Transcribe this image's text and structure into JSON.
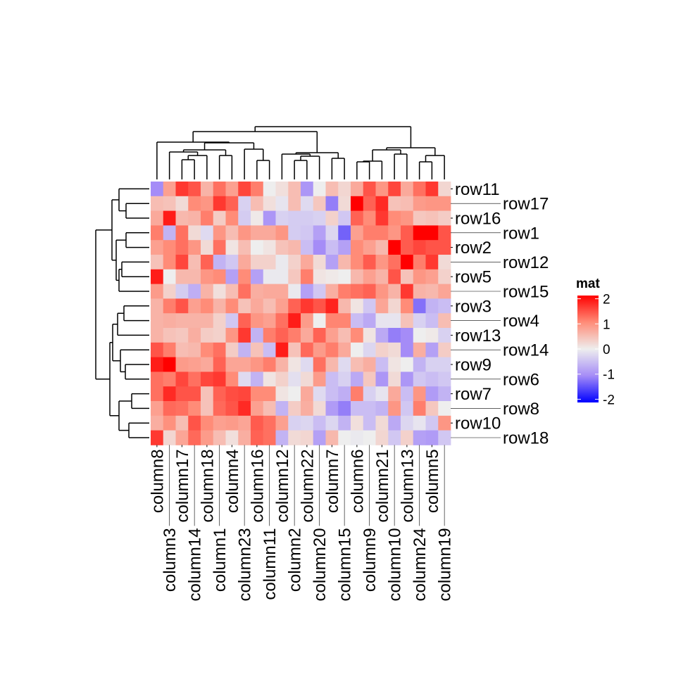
{
  "chart_data": {
    "type": "heatmap",
    "title": "",
    "legend": {
      "title": "mat",
      "ticks": [
        2,
        1,
        0,
        -1,
        -2
      ],
      "placement": "right"
    },
    "color_scale": {
      "min": -2,
      "mid": 0,
      "max": 2,
      "low": "#0000FF",
      "midcolor": "#EEEEEE",
      "high": "#FF0000"
    },
    "rows": [
      "row11",
      "row17",
      "row16",
      "row1",
      "row2",
      "row12",
      "row5",
      "row15",
      "row3",
      "row4",
      "row13",
      "row14",
      "row9",
      "row6",
      "row7",
      "row8",
      "row10",
      "row18"
    ],
    "columns": [
      "column8",
      "column3",
      "column17",
      "column14",
      "column18",
      "column1",
      "column4",
      "column23",
      "column16",
      "column11",
      "column12",
      "column2",
      "column22",
      "column20",
      "column7",
      "column15",
      "column6",
      "column9",
      "column21",
      "column10",
      "column13",
      "column24",
      "column5",
      "column19"
    ],
    "values": [
      [
        -1.0,
        0.8,
        1.6,
        1.4,
        0.6,
        1.2,
        0.8,
        1.5,
        1.1,
        0.0,
        0.15,
        0.5,
        -0.9,
        0.0,
        0.5,
        0.25,
        0.7,
        1.4,
        0.9,
        1.5,
        0.7,
        1.2,
        1.6,
        0.25
      ],
      [
        0.5,
        0.45,
        0.2,
        1.0,
        0.9,
        1.6,
        1.3,
        -0.3,
        0.5,
        0.15,
        -0.1,
        0.5,
        -0.2,
        0.4,
        -1.1,
        0.2,
        2.0,
        1.3,
        1.7,
        0.45,
        0.5,
        0.85,
        0.9,
        0.9
      ],
      [
        0.7,
        1.8,
        0.55,
        0.6,
        1.1,
        0.35,
        1.0,
        -0.35,
        0.05,
        -0.9,
        -0.3,
        -0.35,
        -0.35,
        -0.3,
        0.3,
        -0.4,
        1.3,
        1.0,
        1.6,
        1.0,
        0.9,
        0.4,
        0.45,
        0.35
      ],
      [
        1.1,
        -0.6,
        1.2,
        0.2,
        -0.2,
        0.9,
        0.5,
        0.9,
        0.7,
        0.7,
        0.9,
        -0.35,
        -0.4,
        -0.8,
        -0.25,
        -1.3,
        0.8,
        1.1,
        1.1,
        0.9,
        1.35,
        2.0,
        2.0,
        1.4
      ],
      [
        0.8,
        1.0,
        1.2,
        0.9,
        0.2,
        1.2,
        0.1,
        0.5,
        0.0,
        0.1,
        0.45,
        0.55,
        -0.5,
        -1.0,
        -0.5,
        -0.8,
        1.0,
        0.8,
        0.55,
        2.0,
        1.35,
        1.5,
        1.4,
        1.4
      ],
      [
        0.45,
        1.0,
        1.5,
        0.5,
        1.3,
        -0.6,
        -0.4,
        0.7,
        0.3,
        0.3,
        -0.05,
        0.3,
        0.7,
        0.2,
        -0.8,
        0.55,
        1.0,
        1.35,
        0.9,
        1.2,
        2.0,
        1.1,
        1.6,
        0.2
      ],
      [
        1.8,
        0.0,
        0.55,
        0.55,
        0.9,
        1.0,
        -0.8,
        1.0,
        -0.8,
        -0.05,
        -0.05,
        0.4,
        1.1,
        0.1,
        0.05,
        0.0,
        0.55,
        0.8,
        0.6,
        1.4,
        0.45,
        0.9,
        0.8,
        0.3
      ],
      [
        0.85,
        0.3,
        -0.35,
        -0.65,
        0.6,
        0.15,
        0.5,
        1.2,
        0.65,
        0.7,
        0.7,
        -0.05,
        -0.8,
        -0.4,
        0.65,
        1.1,
        1.2,
        1.3,
        0.9,
        0.6,
        1.6,
        0.6,
        0.55,
        0.75
      ],
      [
        0.6,
        1.1,
        1.4,
        0.8,
        1.0,
        0.6,
        1.0,
        0.45,
        0.7,
        0.5,
        0.8,
        1.3,
        1.6,
        1.4,
        1.75,
        0.55,
        0.1,
        -0.4,
        0.75,
        0.25,
        1.0,
        -1.2,
        -0.6,
        -0.5
      ],
      [
        0.6,
        0.65,
        0.6,
        0.6,
        0.6,
        0.3,
        -0.4,
        1.3,
        0.9,
        0.8,
        1.2,
        1.8,
        0.85,
        0.0,
        1.05,
        1.05,
        -0.5,
        -0.7,
        -0.1,
        -0.1,
        0.45,
        -0.3,
        -0.5,
        0.5
      ],
      [
        0.6,
        0.45,
        0.4,
        0.65,
        0.35,
        0.3,
        0.9,
        1.6,
        -0.6,
        1.1,
        1.3,
        1.1,
        0.7,
        1.3,
        0.8,
        0.5,
        1.0,
        0.1,
        -0.7,
        -1.1,
        -1.0,
        0.0,
        0.05,
        -0.3
      ],
      [
        1.4,
        1.1,
        0.5,
        0.55,
        1.0,
        1.2,
        0.35,
        -0.6,
        0.45,
        -0.5,
        1.8,
        0.45,
        1.25,
        0.85,
        1.1,
        0.7,
        0.0,
        -0.25,
        0.3,
        0.2,
        -1.0,
        0.65,
        -0.8,
        0.35
      ],
      [
        1.8,
        2.0,
        0.85,
        0.8,
        0.7,
        1.3,
        0.75,
        0.75,
        0.9,
        1.1,
        0.6,
        0.1,
        -0.2,
        1.2,
        0.55,
        -0.2,
        0.5,
        0.65,
        -0.5,
        0.1,
        0.0,
        -0.6,
        -0.3,
        -0.3
      ],
      [
        1.2,
        1.1,
        1.5,
        1.2,
        1.5,
        1.6,
        1.0,
        -0.2,
        -0.6,
        0.1,
        0.3,
        -0.15,
        0.2,
        0.85,
        -0.5,
        -0.3,
        -0.7,
        0.4,
        -0.9,
        0.2,
        -0.9,
        -0.4,
        -0.5,
        -0.4
      ],
      [
        1.2,
        1.7,
        1.4,
        1.4,
        0.45,
        1.3,
        1.45,
        1.5,
        1.0,
        1.0,
        0.1,
        0.0,
        0.7,
        -0.2,
        -0.5,
        -0.65,
        1.1,
        -0.3,
        -0.1,
        0.7,
        -0.5,
        0.9,
        -0.85,
        -0.6
      ],
      [
        0.8,
        1.25,
        1.2,
        1.0,
        0.45,
        1.25,
        1.4,
        1.7,
        0.8,
        0.5,
        -0.6,
        0.35,
        0.65,
        0.2,
        -0.85,
        -1.1,
        -0.5,
        -0.5,
        -0.6,
        0.9,
        -0.4,
        1.1,
        0.4,
        0.0
      ],
      [
        0.65,
        0.95,
        0.5,
        1.4,
        1.0,
        0.8,
        0.85,
        0.75,
        1.35,
        1.2,
        0.8,
        -0.3,
        -0.25,
        -0.5,
        -0.25,
        -0.6,
        0.15,
        -0.5,
        0.2,
        -0.7,
        -0.25,
        -0.1,
        -0.4,
        0.9
      ],
      [
        1.6,
        0.25,
        0.75,
        1.25,
        0.85,
        0.5,
        0.15,
        0.65,
        1.3,
        1.2,
        -0.6,
        0.2,
        0.25,
        -0.8,
        0.55,
        0.0,
        -0.05,
        0.0,
        0.25,
        -0.4,
        0.3,
        -0.8,
        -0.85,
        -0.4
      ]
    ],
    "row_dendrogram": {
      "h": 76,
      "c": [
        {
          "h": 53,
          "c": [
            {
              "h": 43,
              "c": [
                0,
                {
                  "h": 33,
                  "c": [
                    1,
                    2
                  ]
                }
              ]
            },
            {
              "h": 47,
              "c": [
                {
                  "h": 33,
                  "c": [
                    3,
                    4
                  ]
                },
                {
                  "h": 43,
                  "c": [
                    {
                      "h": 39,
                      "c": [
                        5,
                        6
                      ]
                    },
                    7
                  ]
                }
              ]
            }
          ]
        },
        {
          "h": 56,
          "c": [
            {
              "h": 52,
              "c": [
                {
                  "h": 45,
                  "c": [
                    {
                      "h": 36,
                      "c": [
                        8,
                        9
                      ]
                    },
                    10
                  ]
                },
                {
                  "h": 41,
                  "c": [
                    11,
                    {
                      "h": 34,
                      "c": [
                        12,
                        13
                      ]
                    }
                  ]
                }
              ]
            },
            {
              "h": 43,
              "c": [
                {
                  "h": 25,
                  "c": [
                    14,
                    15
                  ]
                },
                {
                  "h": 29,
                  "c": [
                    16,
                    17
                  ]
                }
              ]
            }
          ]
        }
      ]
    },
    "column_dendrogram": {
      "h": 75,
      "c": [
        {
          "h": 68,
          "c": [
            {
              "h": 53,
              "c": [
                0,
                {
                  "h": 52,
                  "c": [
                    {
                      "h": 42,
                      "c": [
                        {
                          "h": 39,
                          "c": [
                            1,
                            {
                              "h": 34,
                              "c": [
                                {
                                  "h": 28,
                                  "c": [
                                    2,
                                    3
                                  ]
                                },
                                4
                              ]
                            }
                          ]
                        },
                        {
                          "h": 34,
                          "c": [
                            5,
                            6
                          ]
                        }
                      ]
                    },
                    {
                      "h": 43,
                      "c": [
                        7,
                        {
                          "h": 27,
                          "c": [
                            8,
                            9
                          ]
                        }
                      ]
                    }
                  ]
                }
              ]
            },
            {
              "h": 38,
              "c": [
                {
                  "h": 36,
                  "c": [
                    10,
                    {
                      "h": 33,
                      "c": [
                        {
                          "h": 27,
                          "c": [
                            11,
                            12
                          ]
                        },
                        13
                      ]
                    }
                  ]
                },
                {
                  "h": 30,
                  "c": [
                    14,
                    15
                  ]
                }
              ]
            }
          ]
        },
        {
          "h": 45,
          "c": [
            {
              "h": 42,
              "c": [
                {
                  "h": 26,
                  "c": [
                    {
                      "h": 25,
                      "c": [
                        16,
                        17
                      ]
                    },
                    18
                  ]
                },
                {
                  "h": 36,
                  "c": [
                    19,
                    20
                  ]
                }
              ]
            },
            {
              "h": 34,
              "c": [
                {
                  "h": 25,
                  "c": [
                    21,
                    22
                  ]
                },
                23
              ]
            }
          ]
        }
      ]
    }
  }
}
